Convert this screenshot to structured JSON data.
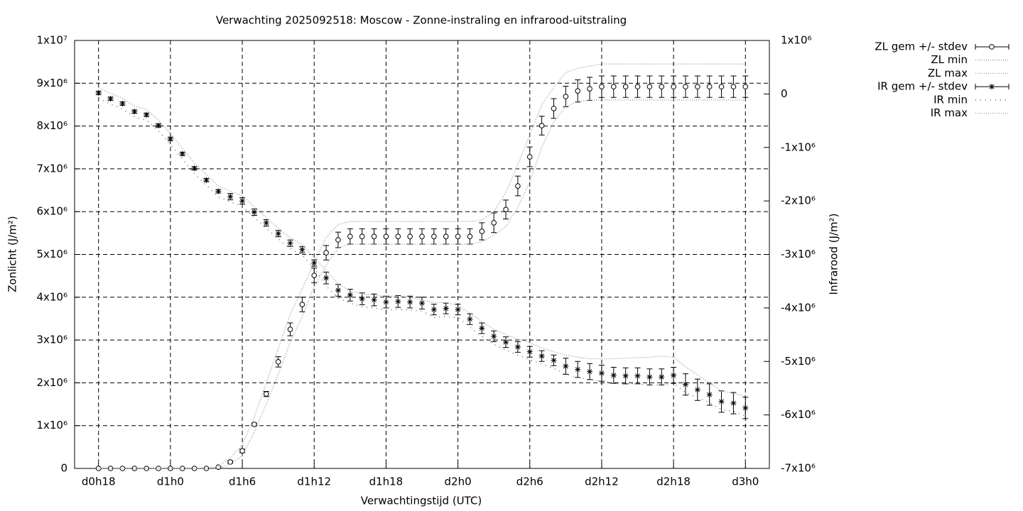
{
  "chart_data": {
    "type": "errorbar",
    "title": "Verwachting 2025092518: Moscow - Zonne-instraling en infrarood-uitstraling",
    "x_label": "Verwachtingstijd (UTC)",
    "y_label": "Zonlicht (J/m²)",
    "y2_label": "Infrarood (J/m²)",
    "grid": true,
    "legend": "outside-top-right",
    "x": [
      18,
      19,
      20,
      21,
      22,
      23,
      24,
      25,
      26,
      27,
      28,
      29,
      30,
      31,
      32,
      33,
      34,
      35,
      36,
      37,
      38,
      39,
      40,
      41,
      42,
      43,
      44,
      45,
      46,
      47,
      48,
      49,
      50,
      51,
      52,
      53,
      54,
      55,
      56,
      57,
      58,
      59,
      60,
      61,
      62,
      63,
      64,
      65,
      66,
      67,
      68,
      69,
      70,
      71,
      72
    ],
    "xlim": [
      16,
      74
    ],
    "xticks": [
      {
        "value": 18,
        "label": "d0h18"
      },
      {
        "value": 24,
        "label": "d1h0"
      },
      {
        "value": 30,
        "label": "d1h6"
      },
      {
        "value": 36,
        "label": "d1h12"
      },
      {
        "value": 42,
        "label": "d1h18"
      },
      {
        "value": 48,
        "label": "d2h0"
      },
      {
        "value": 54,
        "label": "d2h6"
      },
      {
        "value": 60,
        "label": "d2h12"
      },
      {
        "value": 66,
        "label": "d2h18"
      },
      {
        "value": 72,
        "label": "d3h0"
      }
    ],
    "ylim": [
      0,
      10000000
    ],
    "yticks": [
      0,
      {
        "value": 1000000,
        "label": "1x10⁶"
      },
      {
        "value": 2000000,
        "label": "2x10⁶"
      },
      {
        "value": 3000000,
        "label": "3x10⁶"
      },
      {
        "value": 4000000,
        "label": "4x10⁶"
      },
      {
        "value": 5000000,
        "label": "5x10⁶"
      },
      {
        "value": 6000000,
        "label": "6x10⁶"
      },
      {
        "value": 7000000,
        "label": "7x10⁶"
      },
      {
        "value": 8000000,
        "label": "8x10⁶"
      },
      {
        "value": 9000000,
        "label": "9x10⁶"
      },
      {
        "value": 10000000,
        "label": "1x10⁷"
      }
    ],
    "y2lim": [
      -7000000,
      1000000
    ],
    "y2ticks": [
      {
        "value": -7000000,
        "label": "-7x10⁶"
      },
      {
        "value": -6000000,
        "label": "-6x10⁶"
      },
      {
        "value": -5000000,
        "label": "-5x10⁶"
      },
      {
        "value": -4000000,
        "label": "-4x10⁶"
      },
      {
        "value": -3000000,
        "label": "-3x10⁶"
      },
      {
        "value": -2000000,
        "label": "-2x10⁶"
      },
      {
        "value": -1000000,
        "label": "-1x10⁶"
      },
      0,
      {
        "value": 1000000,
        "label": "1x10⁶"
      }
    ],
    "series": [
      {
        "name": "ZL gem +/- stdev",
        "color": "#000000",
        "style": "errorbar",
        "marker": "circle",
        "values": [
          0,
          0,
          0,
          0,
          0,
          0,
          0,
          0,
          0,
          0,
          30000,
          150000,
          410000,
          1030000,
          1740000,
          2490000,
          3250000,
          3830000,
          4510000,
          5040000,
          5340000,
          5420000,
          5420000,
          5420000,
          5420000,
          5420000,
          5420000,
          5420000,
          5420000,
          5420000,
          5420000,
          5420000,
          5540000,
          5740000,
          6050000,
          6600000,
          7280000,
          8010000,
          8410000,
          8690000,
          8820000,
          8870000,
          8920000,
          8920000,
          8920000,
          8920000,
          8920000,
          8920000,
          8920000,
          8920000,
          8920000,
          8920000,
          8920000,
          8920000,
          8920000
        ],
        "errors": [
          0,
          0,
          0,
          0,
          0,
          0,
          0,
          0,
          0,
          0,
          10000,
          30000,
          40000,
          30000,
          60000,
          120000,
          150000,
          170000,
          170000,
          170000,
          180000,
          180000,
          180000,
          180000,
          180000,
          180000,
          180000,
          180000,
          180000,
          180000,
          180000,
          180000,
          200000,
          230000,
          220000,
          230000,
          230000,
          220000,
          230000,
          240000,
          260000,
          270000,
          250000,
          250000,
          250000,
          250000,
          250000,
          250000,
          250000,
          250000,
          250000,
          250000,
          250000,
          250000,
          250000
        ]
      },
      {
        "name": "ZL min",
        "color": "#999999",
        "style": "dotted",
        "values": [
          0,
          0,
          0,
          0,
          0,
          0,
          0,
          0,
          0,
          0,
          0,
          100000,
          300000,
          850000,
          1500000,
          2200000,
          2950000,
          3550000,
          4250000,
          4750000,
          5150000,
          5240000,
          5240000,
          5240000,
          5240000,
          5240000,
          5240000,
          5240000,
          5240000,
          5240000,
          5240000,
          5240000,
          5300000,
          5450000,
          5650000,
          6100000,
          6700000,
          7500000,
          8100000,
          8450000,
          8580000,
          8600000,
          8610000,
          8610000,
          8610000,
          8610000,
          8610000,
          8610000,
          8610000,
          8610000,
          8610000,
          8610000,
          8610000,
          8610000,
          8610000
        ]
      },
      {
        "name": "ZL max",
        "color": "#999999",
        "style": "dotted",
        "values": [
          0,
          0,
          0,
          0,
          0,
          0,
          0,
          0,
          0,
          0,
          50000,
          250000,
          550000,
          1200000,
          2000000,
          2800000,
          3600000,
          4200000,
          4800000,
          5400000,
          5700000,
          5770000,
          5770000,
          5770000,
          5770000,
          5770000,
          5770000,
          5770000,
          5770000,
          5770000,
          5770000,
          5770000,
          5800000,
          6000000,
          6450000,
          7100000,
          7800000,
          8500000,
          8900000,
          9250000,
          9350000,
          9400000,
          9450000,
          9450000,
          9450000,
          9450000,
          9450000,
          9450000,
          9450000,
          9450000,
          9450000,
          9450000,
          9450000,
          9450000,
          9450000
        ]
      },
      {
        "name": "IR gem +/- stdev",
        "color": "#000000",
        "style": "errorbar",
        "marker": "star",
        "axis": "y2",
        "values": [
          20000,
          -90000,
          -180000,
          -330000,
          -390000,
          -590000,
          -840000,
          -1120000,
          -1390000,
          -1610000,
          -1820000,
          -1920000,
          -2000000,
          -2210000,
          -2410000,
          -2610000,
          -2790000,
          -2910000,
          -3160000,
          -3440000,
          -3670000,
          -3760000,
          -3830000,
          -3850000,
          -3890000,
          -3880000,
          -3890000,
          -3910000,
          -4030000,
          -4010000,
          -4030000,
          -4210000,
          -4380000,
          -4530000,
          -4640000,
          -4730000,
          -4820000,
          -4900000,
          -4980000,
          -5090000,
          -5150000,
          -5190000,
          -5220000,
          -5260000,
          -5270000,
          -5270000,
          -5290000,
          -5290000,
          -5260000,
          -5430000,
          -5530000,
          -5620000,
          -5750000,
          -5780000,
          -5870000
        ],
        "errors": [
          30000,
          30000,
          30000,
          30000,
          30000,
          30000,
          30000,
          30000,
          30000,
          30000,
          30000,
          60000,
          60000,
          60000,
          60000,
          60000,
          60000,
          60000,
          60000,
          110000,
          110000,
          110000,
          110000,
          110000,
          110000,
          110000,
          110000,
          110000,
          100000,
          100000,
          100000,
          100000,
          100000,
          100000,
          100000,
          100000,
          100000,
          100000,
          100000,
          150000,
          150000,
          150000,
          150000,
          150000,
          150000,
          150000,
          150000,
          150000,
          150000,
          200000,
          200000,
          200000,
          200000,
          200000,
          200000
        ]
      },
      {
        "name": "IR min",
        "color": "#555555",
        "style": "sparse",
        "axis": "y2",
        "values": [
          -80000,
          -190000,
          -280000,
          -430000,
          -490000,
          -690000,
          -940000,
          -1220000,
          -1490000,
          -1710000,
          -1920000,
          -2020000,
          -2100000,
          -2310000,
          -2510000,
          -2710000,
          -2890000,
          -3010000,
          -3260000,
          -3590000,
          -3820000,
          -3910000,
          -3980000,
          -4000000,
          -4040000,
          -4030000,
          -4040000,
          -4060000,
          -4180000,
          -4160000,
          -4180000,
          -4360000,
          -4530000,
          -4680000,
          -4790000,
          -4880000,
          -4970000,
          -5050000,
          -5130000,
          -5240000,
          -5300000,
          -5340000,
          -5370000,
          -5410000,
          -5420000,
          -5420000,
          -5440000,
          -5440000,
          -5410000,
          -5580000,
          -5680000,
          -5770000,
          -5900000,
          -5930000,
          -6020000
        ]
      },
      {
        "name": "IR max",
        "color": "#999999",
        "style": "dotted",
        "axis": "y2",
        "values": [
          120000,
          10000,
          -80000,
          -230000,
          -290000,
          -490000,
          -740000,
          -1020000,
          -1290000,
          -1510000,
          -1720000,
          -1820000,
          -1900000,
          -2110000,
          -2310000,
          -2510000,
          -2690000,
          -2810000,
          -3060000,
          -3300000,
          -3550000,
          -3680000,
          -3740000,
          -3760000,
          -3780000,
          -3780000,
          -3800000,
          -3850000,
          -3900000,
          -3900000,
          -3950000,
          -4100000,
          -4250000,
          -4400000,
          -4500000,
          -4580000,
          -4650000,
          -4750000,
          -4820000,
          -4880000,
          -4920000,
          -4950000,
          -4950000,
          -4950000,
          -4940000,
          -4930000,
          -4920000,
          -4900000,
          -4920000,
          -5100000,
          -5250000,
          -5400000,
          -5550000,
          -5600000,
          -5650000
        ]
      }
    ]
  }
}
